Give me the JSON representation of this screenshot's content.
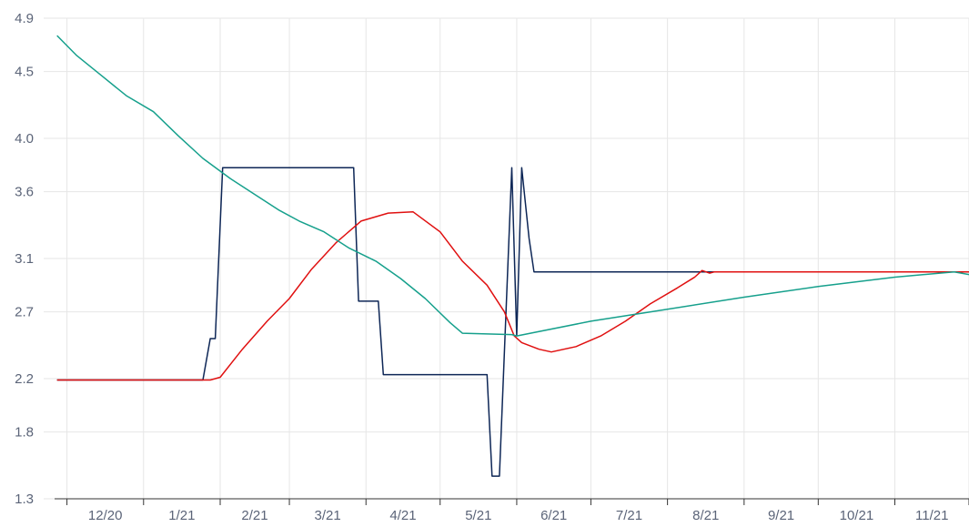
{
  "chart_data": {
    "type": "line",
    "title": "",
    "xlabel": "",
    "ylabel": "",
    "x_ticks": [
      "12/20",
      "1/21",
      "2/21",
      "3/21",
      "4/21",
      "5/21",
      "6/21",
      "7/21",
      "8/21",
      "9/21",
      "10/21",
      "11/21"
    ],
    "y_ticks": [
      "1.3",
      "1.8",
      "2.2",
      "2.7",
      "3.1",
      "3.6",
      "4.0",
      "4.5",
      "4.9"
    ],
    "ylim": [
      1.3,
      4.9
    ],
    "xlim": [
      "2020-11-26",
      "2021-12-01"
    ],
    "grid": true,
    "legend": "none",
    "series": [
      {
        "color": "#0d2656",
        "points": [
          [
            "2020-11-27",
            2.19
          ],
          [
            "2021-01-25",
            2.19
          ],
          [
            "2021-01-28",
            2.5
          ],
          [
            "2021-01-30",
            2.5
          ],
          [
            "2021-02-02",
            3.78
          ],
          [
            "2021-03-27",
            3.78
          ],
          [
            "2021-03-29",
            2.78
          ],
          [
            "2021-04-06",
            2.78
          ],
          [
            "2021-04-08",
            2.23
          ],
          [
            "2021-05-20",
            2.23
          ],
          [
            "2021-05-22",
            1.47
          ],
          [
            "2021-05-25",
            1.47
          ],
          [
            "2021-05-30",
            3.78
          ],
          [
            "2021-06-01",
            2.52
          ],
          [
            "2021-06-03",
            3.78
          ],
          [
            "2021-06-06",
            3.25
          ],
          [
            "2021-06-08",
            3.0
          ],
          [
            "2021-12-01",
            3.0
          ]
        ]
      },
      {
        "color": "#e01010",
        "points": [
          [
            "2020-11-27",
            2.19
          ],
          [
            "2021-01-28",
            2.19
          ],
          [
            "2021-02-01",
            2.21
          ],
          [
            "2021-02-10",
            2.42
          ],
          [
            "2021-02-20",
            2.63
          ],
          [
            "2021-03-01",
            2.8
          ],
          [
            "2021-03-10",
            3.02
          ],
          [
            "2021-03-20",
            3.22
          ],
          [
            "2021-03-30",
            3.38
          ],
          [
            "2021-04-10",
            3.44
          ],
          [
            "2021-04-20",
            3.45
          ],
          [
            "2021-05-01",
            3.3
          ],
          [
            "2021-05-10",
            3.08
          ],
          [
            "2021-05-20",
            2.9
          ],
          [
            "2021-05-27",
            2.7
          ],
          [
            "2021-05-31",
            2.52
          ],
          [
            "2021-06-03",
            2.47
          ],
          [
            "2021-06-10",
            2.42
          ],
          [
            "2021-06-15",
            2.4
          ],
          [
            "2021-06-25",
            2.44
          ],
          [
            "2021-07-05",
            2.52
          ],
          [
            "2021-07-15",
            2.63
          ],
          [
            "2021-07-25",
            2.76
          ],
          [
            "2021-08-05",
            2.88
          ],
          [
            "2021-08-12",
            2.96
          ],
          [
            "2021-08-15",
            3.01
          ],
          [
            "2021-08-18",
            2.99
          ],
          [
            "2021-08-20",
            3.0
          ],
          [
            "2021-12-01",
            3.0
          ]
        ]
      },
      {
        "color": "#16a08c",
        "points": [
          [
            "2020-11-27",
            4.77
          ],
          [
            "2020-12-05",
            4.62
          ],
          [
            "2020-12-15",
            4.47
          ],
          [
            "2020-12-25",
            4.32
          ],
          [
            "2021-01-05",
            4.2
          ],
          [
            "2021-01-15",
            4.02
          ],
          [
            "2021-01-25",
            3.85
          ],
          [
            "2021-02-05",
            3.7
          ],
          [
            "2021-02-15",
            3.58
          ],
          [
            "2021-02-25",
            3.46
          ],
          [
            "2021-03-05",
            3.38
          ],
          [
            "2021-03-15",
            3.3
          ],
          [
            "2021-03-25",
            3.18
          ],
          [
            "2021-04-05",
            3.08
          ],
          [
            "2021-04-15",
            2.95
          ],
          [
            "2021-04-25",
            2.8
          ],
          [
            "2021-05-05",
            2.62
          ],
          [
            "2021-05-10",
            2.54
          ],
          [
            "2021-05-30",
            2.53
          ],
          [
            "2021-06-01",
            2.52
          ],
          [
            "2021-07-01",
            2.63
          ],
          [
            "2021-08-01",
            2.72
          ],
          [
            "2021-09-01",
            2.81
          ],
          [
            "2021-10-01",
            2.89
          ],
          [
            "2021-11-01",
            2.96
          ],
          [
            "2021-11-25",
            3.0
          ],
          [
            "2021-12-01",
            2.98
          ]
        ]
      }
    ]
  }
}
